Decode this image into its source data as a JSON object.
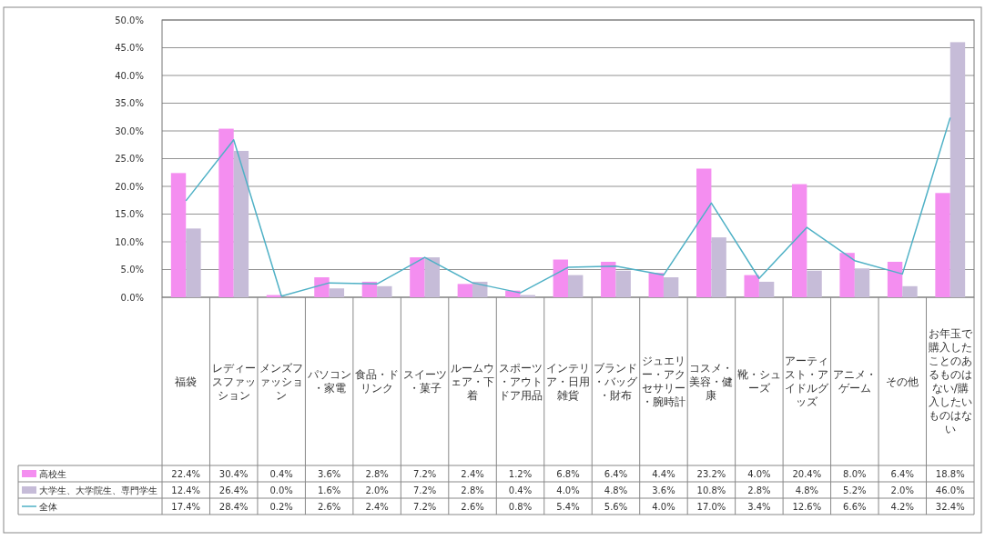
{
  "chart_data": {
    "type": "bar",
    "categories": [
      "福袋",
      "レディースファッション",
      "メンズファッション",
      "パソコン・家電",
      "食品・ドリンク",
      "スイーツ・菓子",
      "ルームウェア・下着",
      "スポーツ・アウトドア用品",
      "インテリア・日用雑貨",
      "ブランド・バッグ・財布",
      "ジュエリー・アクセサリー・腕時計",
      "コスメ・美容・健康",
      "靴・シューズ",
      "アーティスト・アイドルグッズ",
      "アニメ・ゲーム",
      "その他",
      "お年玉で購入したことのあるものはない/購入したいものはない"
    ],
    "series": [
      {
        "name": "高校生",
        "color": "#f48ef0",
        "values": [
          22.4,
          30.4,
          0.4,
          3.6,
          2.8,
          7.2,
          2.4,
          1.2,
          6.8,
          6.4,
          4.4,
          23.2,
          4.0,
          20.4,
          8.0,
          6.4,
          18.8
        ],
        "value_labels": [
          "22.4%",
          "30.4%",
          "0.4%",
          "3.6%",
          "2.8%",
          "7.2%",
          "2.4%",
          "1.2%",
          "6.8%",
          "6.4%",
          "4.4%",
          "23.2%",
          "4.0%",
          "20.4%",
          "8.0%",
          "6.4%",
          "18.8%"
        ]
      },
      {
        "name": "大学生、大学院生、専門学生",
        "color": "#c6bcd8",
        "values": [
          12.4,
          26.4,
          0.0,
          1.6,
          2.0,
          7.2,
          2.8,
          0.4,
          4.0,
          4.8,
          3.6,
          10.8,
          2.8,
          4.8,
          5.2,
          2.0,
          46.0
        ],
        "value_labels": [
          "12.4%",
          "26.4%",
          "0.0%",
          "1.6%",
          "2.0%",
          "7.2%",
          "2.8%",
          "0.4%",
          "4.0%",
          "4.8%",
          "3.6%",
          "10.8%",
          "2.8%",
          "4.8%",
          "5.2%",
          "2.0%",
          "46.0%"
        ]
      },
      {
        "name": "全体",
        "type": "line",
        "color": "#4fb1c6",
        "values": [
          17.4,
          28.4,
          0.2,
          2.6,
          2.4,
          7.2,
          2.6,
          0.8,
          5.4,
          5.6,
          4.0,
          17.0,
          3.4,
          12.6,
          6.6,
          4.2,
          32.4
        ],
        "value_labels": [
          "17.4%",
          "28.4%",
          "0.2%",
          "2.6%",
          "2.4%",
          "7.2%",
          "2.6%",
          "0.8%",
          "5.4%",
          "5.6%",
          "4.0%",
          "17.0%",
          "3.4%",
          "12.6%",
          "6.6%",
          "4.2%",
          "32.4%"
        ]
      }
    ],
    "ylim": [
      0,
      50
    ],
    "yticks": [
      {
        "value": 0,
        "label": "0.0%"
      },
      {
        "value": 5,
        "label": "5.0%"
      },
      {
        "value": 10,
        "label": "10.0%"
      },
      {
        "value": 15,
        "label": "15.0%"
      },
      {
        "value": 20,
        "label": "20.0%"
      },
      {
        "value": 25,
        "label": "25.0%"
      },
      {
        "value": 30,
        "label": "30.0%"
      },
      {
        "value": 35,
        "label": "35.0%"
      },
      {
        "value": 40,
        "label": "40.0%"
      },
      {
        "value": 45,
        "label": "45.0%"
      },
      {
        "value": 50,
        "label": "50.0%"
      }
    ],
    "grid": "y",
    "legend": "bottom left",
    "line_style": "solid",
    "marker": "none"
  }
}
